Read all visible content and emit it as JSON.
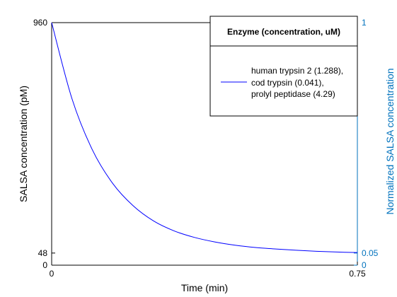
{
  "chart_data": {
    "type": "line",
    "xlabel": "Time (min)",
    "ylabel_left": "SALSA concentration (pM)",
    "ylabel_right": "Normalized SALSA concentration",
    "xlim": [
      0,
      0.75
    ],
    "ylim_left": [
      0,
      960
    ],
    "ylim_right": [
      0,
      1
    ],
    "x_ticks": [
      "0",
      "0.75"
    ],
    "y_left_ticks": [
      "0",
      "48",
      "960"
    ],
    "y_right_ticks": [
      "0",
      "0.05",
      "1"
    ],
    "grid": false,
    "colors": {
      "series": "#0000FF",
      "right_axis": "#0072BD",
      "axes": "#000000"
    },
    "legend": {
      "placement": "top-right",
      "title": "Enzyme (concentration, uM)",
      "lines": [
        "human trypsin 2 (1.288),",
        "cod trypsin (0.041),",
        "prolyl peptidase (4.29)"
      ]
    },
    "series": [
      {
        "x": [
          0,
          0.05,
          0.1,
          0.15,
          0.2,
          0.25,
          0.3,
          0.35,
          0.4,
          0.45,
          0.5,
          0.55,
          0.6,
          0.65,
          0.7,
          0.75
        ],
        "values": [
          960,
          658,
          456,
          323,
          235,
          175,
          136,
          110,
          92,
          79,
          70,
          64,
          59,
          55,
          52,
          50
        ]
      }
    ]
  }
}
